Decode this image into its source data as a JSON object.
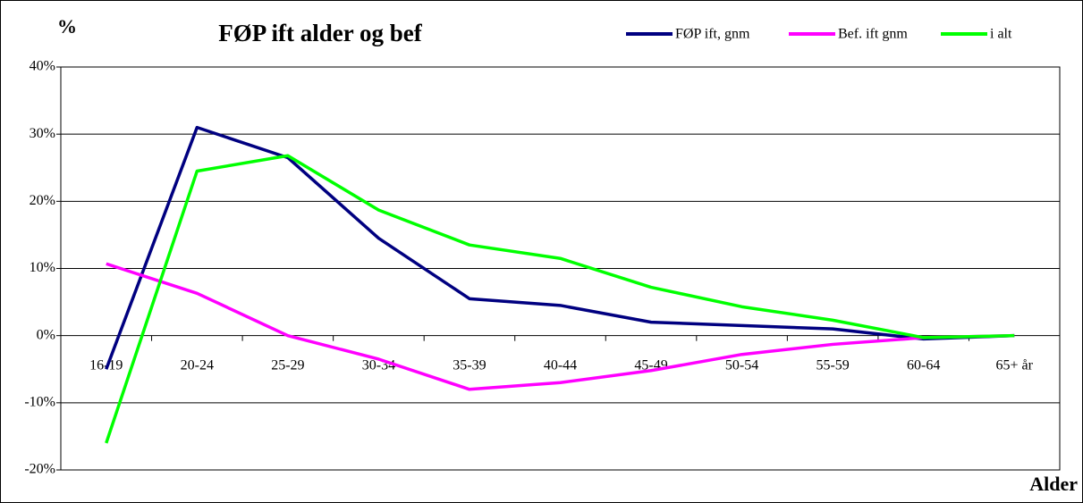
{
  "chart_data": {
    "type": "line",
    "title": "FØP ift alder og bef",
    "y_label": "%",
    "x_label": "Alder",
    "categories": [
      "16-19",
      "20-24",
      "25-29",
      "30-34",
      "35-39",
      "40-44",
      "45-49",
      "50-54",
      "55-59",
      "60-64",
      "65+ år"
    ],
    "series": [
      {
        "name": "FØP ift, gnm",
        "color": "#000080",
        "values": [
          -5,
          31,
          26.5,
          14.5,
          5.5,
          4.5,
          2,
          1.5,
          1,
          -0.5,
          0
        ]
      },
      {
        "name": "Bef. ift gnm",
        "color": "#ff00ff",
        "values": [
          10.7,
          6.3,
          0,
          -3.5,
          -8,
          -7,
          -5.2,
          -2.8,
          -1.3,
          -0.3,
          0
        ]
      },
      {
        "name": "i alt",
        "color": "#00ff00",
        "values": [
          -16,
          24.5,
          26.8,
          18.7,
          13.5,
          11.5,
          7.2,
          4.3,
          2.3,
          -0.3,
          0
        ]
      }
    ],
    "ylim": [
      -20,
      40
    ],
    "yticks": [
      {
        "value": -20,
        "label": "-20%"
      },
      {
        "value": -10,
        "label": "-10%"
      },
      {
        "value": 0,
        "label": "0%"
      },
      {
        "value": 10,
        "label": "10%"
      },
      {
        "value": 20,
        "label": "20%"
      },
      {
        "value": 30,
        "label": "30%"
      },
      {
        "value": 40,
        "label": "40%"
      }
    ],
    "grid": true,
    "legend": "top-right"
  }
}
